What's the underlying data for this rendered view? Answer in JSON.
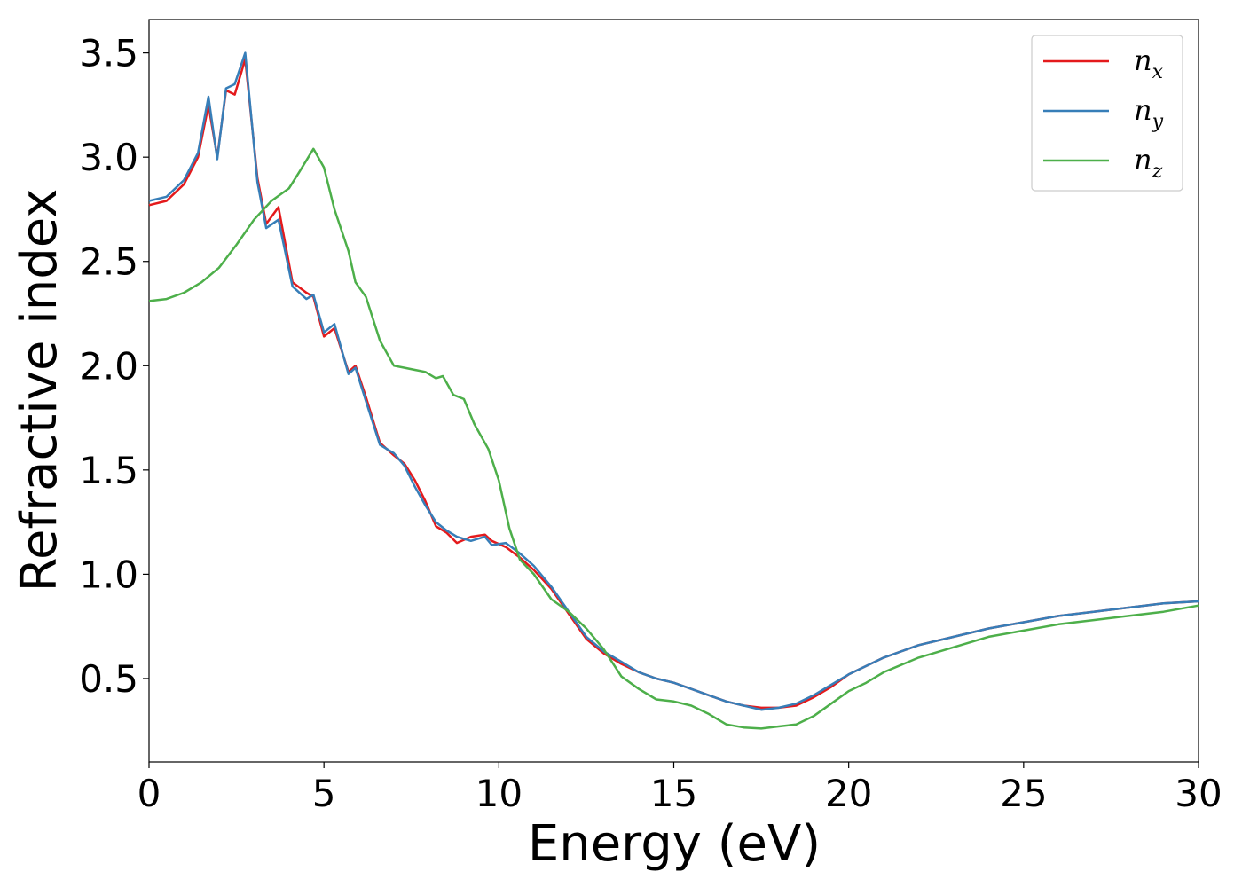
{
  "chart_data": {
    "type": "line",
    "xlabel": "Energy (eV)",
    "ylabel": "Refractive index",
    "xlim": [
      0,
      30
    ],
    "ylim": [
      0.1,
      3.66
    ],
    "xticks": [
      0,
      5,
      10,
      15,
      20,
      25,
      30
    ],
    "xtick_labels": [
      "0",
      "5",
      "10",
      "15",
      "20",
      "25",
      "30"
    ],
    "yticks": [
      0.5,
      1.0,
      1.5,
      2.0,
      2.5,
      3.0,
      3.5
    ],
    "ytick_labels": [
      "0.5",
      "1.0",
      "1.5",
      "2.0",
      "2.5",
      "3.0",
      "3.5"
    ],
    "grid": false,
    "legend_position": "top-right",
    "series": [
      {
        "key": "nx",
        "name": "n",
        "sub": "x",
        "color": "#e41a1c",
        "points": [
          [
            0,
            2.77
          ],
          [
            0.5,
            2.79
          ],
          [
            1.0,
            2.87
          ],
          [
            1.4,
            3.0
          ],
          [
            1.7,
            3.25
          ],
          [
            1.95,
            3.0
          ],
          [
            2.2,
            3.32
          ],
          [
            2.45,
            3.3
          ],
          [
            2.75,
            3.47
          ],
          [
            3.1,
            2.9
          ],
          [
            3.35,
            2.68
          ],
          [
            3.7,
            2.76
          ],
          [
            4.1,
            2.4
          ],
          [
            4.5,
            2.35
          ],
          [
            4.7,
            2.33
          ],
          [
            5.0,
            2.14
          ],
          [
            5.3,
            2.18
          ],
          [
            5.7,
            1.97
          ],
          [
            5.9,
            2.0
          ],
          [
            6.2,
            1.85
          ],
          [
            6.6,
            1.63
          ],
          [
            7.0,
            1.57
          ],
          [
            7.3,
            1.53
          ],
          [
            7.6,
            1.45
          ],
          [
            7.9,
            1.35
          ],
          [
            8.2,
            1.23
          ],
          [
            8.5,
            1.2
          ],
          [
            8.8,
            1.15
          ],
          [
            9.2,
            1.18
          ],
          [
            9.6,
            1.19
          ],
          [
            9.8,
            1.16
          ],
          [
            10.2,
            1.13
          ],
          [
            10.6,
            1.08
          ],
          [
            11.0,
            1.02
          ],
          [
            11.5,
            0.93
          ],
          [
            12.0,
            0.81
          ],
          [
            12.5,
            0.69
          ],
          [
            13.0,
            0.62
          ],
          [
            13.5,
            0.57
          ],
          [
            14.0,
            0.53
          ],
          [
            14.5,
            0.5
          ],
          [
            15.0,
            0.48
          ],
          [
            15.5,
            0.45
          ],
          [
            16.0,
            0.42
          ],
          [
            16.5,
            0.39
          ],
          [
            17.0,
            0.37
          ],
          [
            17.5,
            0.36
          ],
          [
            18.0,
            0.36
          ],
          [
            18.5,
            0.37
          ],
          [
            19.0,
            0.41
          ],
          [
            19.5,
            0.46
          ],
          [
            20.0,
            0.52
          ],
          [
            21.0,
            0.6
          ],
          [
            22.0,
            0.66
          ],
          [
            23.0,
            0.7
          ],
          [
            24.0,
            0.74
          ],
          [
            25.0,
            0.77
          ],
          [
            26.0,
            0.8
          ],
          [
            27.0,
            0.82
          ],
          [
            28.0,
            0.84
          ],
          [
            29.0,
            0.86
          ],
          [
            30.0,
            0.87
          ]
        ]
      },
      {
        "key": "ny",
        "name": "n",
        "sub": "y",
        "color": "#377eb8",
        "points": [
          [
            0,
            2.79
          ],
          [
            0.5,
            2.81
          ],
          [
            1.0,
            2.89
          ],
          [
            1.4,
            3.02
          ],
          [
            1.7,
            3.29
          ],
          [
            1.95,
            2.99
          ],
          [
            2.2,
            3.33
          ],
          [
            2.45,
            3.35
          ],
          [
            2.75,
            3.5
          ],
          [
            3.1,
            2.88
          ],
          [
            3.35,
            2.66
          ],
          [
            3.7,
            2.7
          ],
          [
            4.1,
            2.38
          ],
          [
            4.5,
            2.32
          ],
          [
            4.7,
            2.34
          ],
          [
            5.0,
            2.16
          ],
          [
            5.3,
            2.2
          ],
          [
            5.7,
            1.96
          ],
          [
            5.9,
            1.99
          ],
          [
            6.2,
            1.83
          ],
          [
            6.6,
            1.62
          ],
          [
            7.0,
            1.58
          ],
          [
            7.3,
            1.52
          ],
          [
            7.6,
            1.42
          ],
          [
            7.9,
            1.33
          ],
          [
            8.2,
            1.25
          ],
          [
            8.5,
            1.21
          ],
          [
            8.8,
            1.18
          ],
          [
            9.2,
            1.16
          ],
          [
            9.6,
            1.18
          ],
          [
            9.8,
            1.14
          ],
          [
            10.2,
            1.15
          ],
          [
            10.6,
            1.1
          ],
          [
            11.0,
            1.04
          ],
          [
            11.5,
            0.94
          ],
          [
            12.0,
            0.82
          ],
          [
            12.5,
            0.7
          ],
          [
            13.0,
            0.63
          ],
          [
            13.5,
            0.58
          ],
          [
            14.0,
            0.53
          ],
          [
            14.5,
            0.5
          ],
          [
            15.0,
            0.48
          ],
          [
            15.5,
            0.45
          ],
          [
            16.0,
            0.42
          ],
          [
            16.5,
            0.39
          ],
          [
            17.0,
            0.37
          ],
          [
            17.5,
            0.35
          ],
          [
            18.0,
            0.36
          ],
          [
            18.5,
            0.38
          ],
          [
            19.0,
            0.42
          ],
          [
            19.5,
            0.47
          ],
          [
            20.0,
            0.52
          ],
          [
            21.0,
            0.6
          ],
          [
            22.0,
            0.66
          ],
          [
            23.0,
            0.7
          ],
          [
            24.0,
            0.74
          ],
          [
            25.0,
            0.77
          ],
          [
            26.0,
            0.8
          ],
          [
            27.0,
            0.82
          ],
          [
            28.0,
            0.84
          ],
          [
            29.0,
            0.86
          ],
          [
            30.0,
            0.87
          ]
        ]
      },
      {
        "key": "nz",
        "name": "n",
        "sub": "z",
        "color": "#4daf4a",
        "points": [
          [
            0,
            2.31
          ],
          [
            0.5,
            2.32
          ],
          [
            1.0,
            2.35
          ],
          [
            1.5,
            2.4
          ],
          [
            2.0,
            2.47
          ],
          [
            2.5,
            2.58
          ],
          [
            3.0,
            2.7
          ],
          [
            3.5,
            2.79
          ],
          [
            4.0,
            2.85
          ],
          [
            4.3,
            2.93
          ],
          [
            4.7,
            3.04
          ],
          [
            5.0,
            2.95
          ],
          [
            5.3,
            2.75
          ],
          [
            5.7,
            2.55
          ],
          [
            5.9,
            2.4
          ],
          [
            6.2,
            2.33
          ],
          [
            6.6,
            2.12
          ],
          [
            7.0,
            2.0
          ],
          [
            7.3,
            1.99
          ],
          [
            7.6,
            1.98
          ],
          [
            7.9,
            1.97
          ],
          [
            8.2,
            1.94
          ],
          [
            8.4,
            1.95
          ],
          [
            8.7,
            1.86
          ],
          [
            9.0,
            1.84
          ],
          [
            9.3,
            1.72
          ],
          [
            9.7,
            1.6
          ],
          [
            10.0,
            1.45
          ],
          [
            10.3,
            1.22
          ],
          [
            10.6,
            1.07
          ],
          [
            11.0,
            1.0
          ],
          [
            11.5,
            0.88
          ],
          [
            12.0,
            0.82
          ],
          [
            12.5,
            0.74
          ],
          [
            13.0,
            0.64
          ],
          [
            13.5,
            0.51
          ],
          [
            14.0,
            0.45
          ],
          [
            14.5,
            0.4
          ],
          [
            15.0,
            0.39
          ],
          [
            15.5,
            0.37
          ],
          [
            16.0,
            0.33
          ],
          [
            16.5,
            0.28
          ],
          [
            17.0,
            0.265
          ],
          [
            17.5,
            0.26
          ],
          [
            18.0,
            0.27
          ],
          [
            18.5,
            0.28
          ],
          [
            19.0,
            0.32
          ],
          [
            19.5,
            0.38
          ],
          [
            20.0,
            0.44
          ],
          [
            20.5,
            0.48
          ],
          [
            21.0,
            0.53
          ],
          [
            22.0,
            0.6
          ],
          [
            23.0,
            0.65
          ],
          [
            24.0,
            0.7
          ],
          [
            25.0,
            0.73
          ],
          [
            26.0,
            0.76
          ],
          [
            27.0,
            0.78
          ],
          [
            28.0,
            0.8
          ],
          [
            29.0,
            0.82
          ],
          [
            30.0,
            0.85
          ]
        ]
      }
    ]
  }
}
